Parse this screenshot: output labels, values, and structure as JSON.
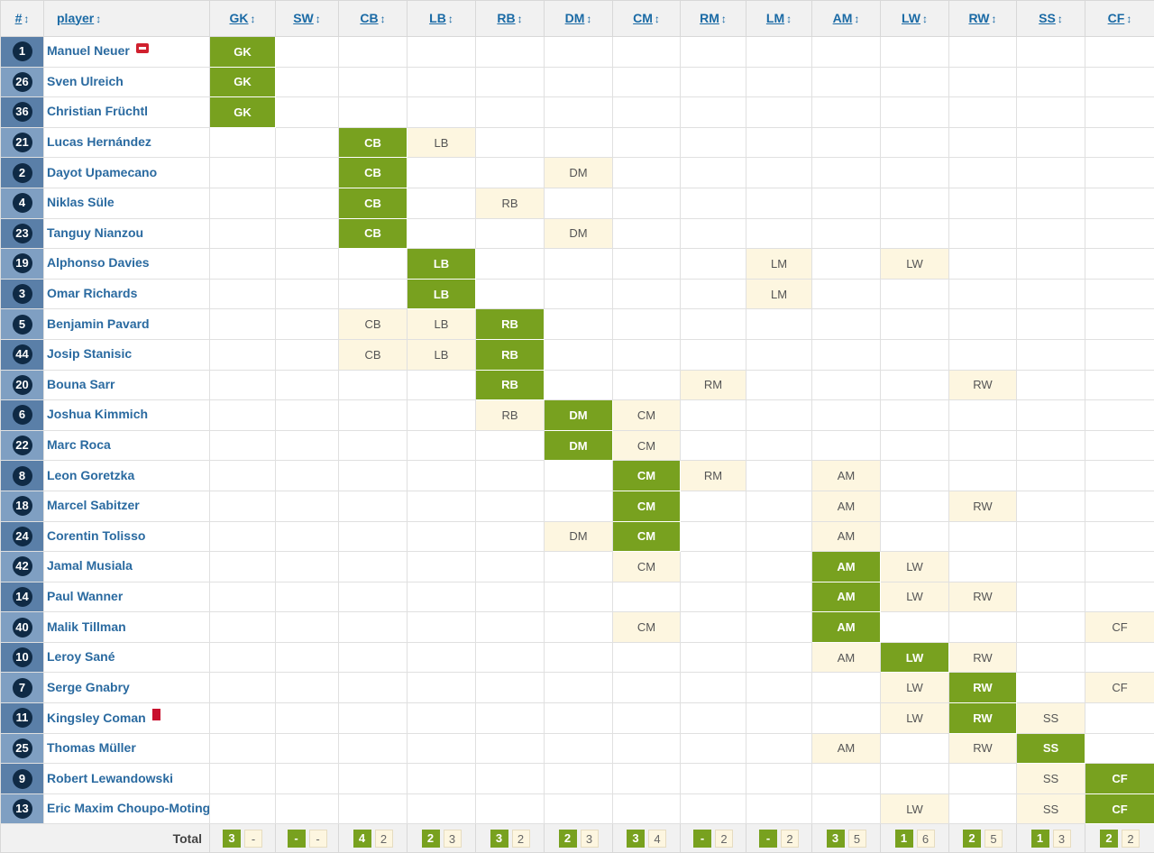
{
  "header": {
    "num": "#",
    "player": "player",
    "sort_arrow": "↕",
    "positions": [
      "GK",
      "SW",
      "CB",
      "LB",
      "RB",
      "DM",
      "CM",
      "RM",
      "LM",
      "AM",
      "LW",
      "RW",
      "SS",
      "CF"
    ]
  },
  "rows": [
    {
      "num": "1",
      "name": "Manuel Neuer",
      "badge": "injury",
      "main": "GK",
      "sec": []
    },
    {
      "num": "26",
      "name": "Sven Ulreich",
      "main": "GK",
      "sec": []
    },
    {
      "num": "36",
      "name": "Christian Früchtl",
      "main": "GK",
      "sec": []
    },
    {
      "num": "21",
      "name": "Lucas Hernández",
      "main": "CB",
      "sec": [
        "LB"
      ]
    },
    {
      "num": "2",
      "name": "Dayot Upamecano",
      "main": "CB",
      "sec": [
        "DM"
      ]
    },
    {
      "num": "4",
      "name": "Niklas Süle",
      "main": "CB",
      "sec": [
        "RB"
      ]
    },
    {
      "num": "23",
      "name": "Tanguy Nianzou",
      "main": "CB",
      "sec": [
        "DM"
      ]
    },
    {
      "num": "19",
      "name": "Alphonso Davies",
      "main": "LB",
      "sec": [
        "LM",
        "LW"
      ]
    },
    {
      "num": "3",
      "name": "Omar Richards",
      "main": "LB",
      "sec": [
        "LM"
      ]
    },
    {
      "num": "5",
      "name": "Benjamin Pavard",
      "main": "RB",
      "sec": [
        "CB",
        "LB"
      ]
    },
    {
      "num": "44",
      "name": "Josip Stanisic",
      "main": "RB",
      "sec": [
        "CB",
        "LB"
      ]
    },
    {
      "num": "20",
      "name": "Bouna Sarr",
      "main": "RB",
      "sec": [
        "RM",
        "RW"
      ]
    },
    {
      "num": "6",
      "name": "Joshua Kimmich",
      "main": "DM",
      "sec": [
        "RB",
        "CM"
      ]
    },
    {
      "num": "22",
      "name": "Marc Roca",
      "main": "DM",
      "sec": [
        "CM"
      ]
    },
    {
      "num": "8",
      "name": "Leon Goretzka",
      "main": "CM",
      "sec": [
        "RM",
        "AM"
      ]
    },
    {
      "num": "18",
      "name": "Marcel Sabitzer",
      "main": "CM",
      "sec": [
        "AM",
        "RW"
      ]
    },
    {
      "num": "24",
      "name": "Corentin Tolisso",
      "main": "CM",
      "sec": [
        "DM",
        "AM"
      ]
    },
    {
      "num": "42",
      "name": "Jamal Musiala",
      "main": "AM",
      "sec": [
        "CM",
        "LW"
      ]
    },
    {
      "num": "14",
      "name": "Paul Wanner",
      "main": "AM",
      "sec": [
        "LW",
        "RW"
      ]
    },
    {
      "num": "40",
      "name": "Malik Tillman",
      "main": "AM",
      "sec": [
        "CM",
        "CF"
      ]
    },
    {
      "num": "10",
      "name": "Leroy Sané",
      "main": "LW",
      "sec": [
        "AM",
        "RW"
      ]
    },
    {
      "num": "7",
      "name": "Serge Gnabry",
      "main": "RW",
      "sec": [
        "LW",
        "CF"
      ]
    },
    {
      "num": "11",
      "name": "Kingsley Coman",
      "badge": "red",
      "main": "RW",
      "sec": [
        "LW",
        "SS"
      ]
    },
    {
      "num": "25",
      "name": "Thomas Müller",
      "main": "SS",
      "sec": [
        "AM",
        "RW"
      ]
    },
    {
      "num": "9",
      "name": "Robert Lewandowski",
      "main": "CF",
      "sec": [
        "SS"
      ]
    },
    {
      "num": "13",
      "name": "Eric Maxim Choupo-Moting",
      "main": "CF",
      "sec": [
        "LW",
        "SS"
      ]
    }
  ],
  "footer": {
    "label": "Total",
    "totals": [
      [
        "3",
        "-"
      ],
      [
        "-",
        "-"
      ],
      [
        "4",
        "2"
      ],
      [
        "2",
        "3"
      ],
      [
        "3",
        "2"
      ],
      [
        "2",
        "3"
      ],
      [
        "3",
        "4"
      ],
      [
        "-",
        "2"
      ],
      [
        "-",
        "2"
      ],
      [
        "3",
        "5"
      ],
      [
        "1",
        "6"
      ],
      [
        "2",
        "5"
      ],
      [
        "1",
        "3"
      ],
      [
        "2",
        "2"
      ]
    ]
  }
}
